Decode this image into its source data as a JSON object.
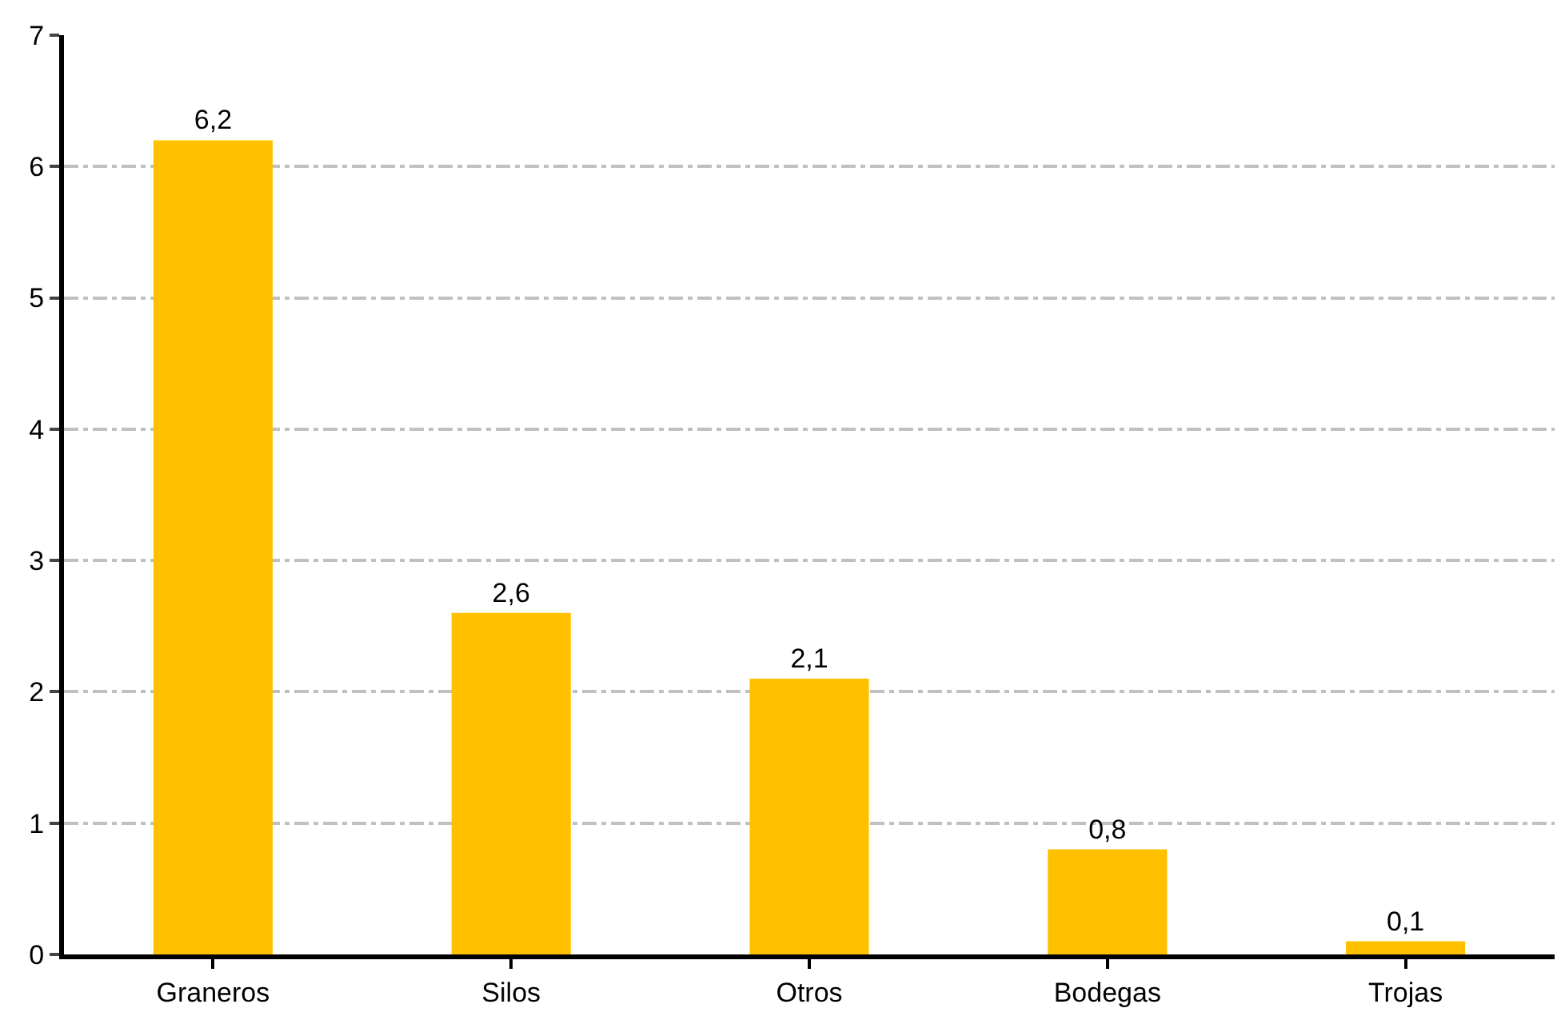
{
  "chart_data": {
    "type": "bar",
    "categories": [
      "Graneros",
      "Silos",
      "Otros",
      "Bodegas",
      "Trojas"
    ],
    "values": [
      6.2,
      2.6,
      2.1,
      0.8,
      0.1
    ],
    "value_labels": [
      "6,2",
      "2,6",
      "2,1",
      "0,8",
      "0,1"
    ],
    "color": "#ffc000",
    "ylim": [
      0,
      7
    ],
    "yticks": [
      0,
      1,
      2,
      3,
      4,
      5,
      6,
      7
    ],
    "grid": "y",
    "legend": false
  }
}
